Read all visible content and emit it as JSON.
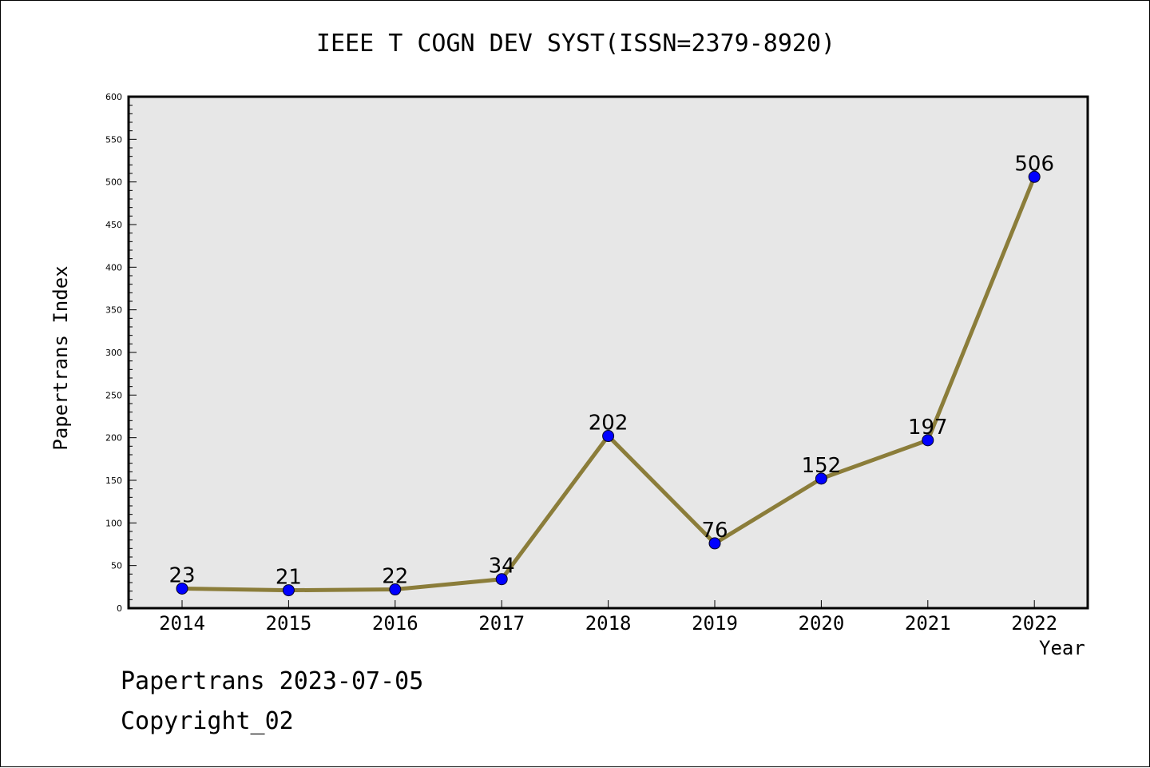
{
  "chart_data": {
    "type": "line",
    "title": "IEEE T COGN DEV SYST(ISSN=2379-8920)",
    "xlabel": "Year",
    "ylabel": "Papertrans Index",
    "categories": [
      "2014",
      "2015",
      "2016",
      "2017",
      "2018",
      "2019",
      "2020",
      "2021",
      "2022"
    ],
    "values": [
      23,
      21,
      22,
      34,
      202,
      76,
      152,
      197,
      506
    ],
    "ylim": [
      0,
      600
    ],
    "yticks": [
      0,
      50,
      100,
      150,
      200,
      250,
      300,
      350,
      400,
      450,
      500,
      550,
      600
    ],
    "grid": false,
    "colors": {
      "line": "#8b7d3a",
      "marker": "#0000ff",
      "plot_background": "#e7e7e7"
    }
  },
  "footer": {
    "line1": "Papertrans 2023-07-05",
    "line2": "Copyright_02"
  }
}
